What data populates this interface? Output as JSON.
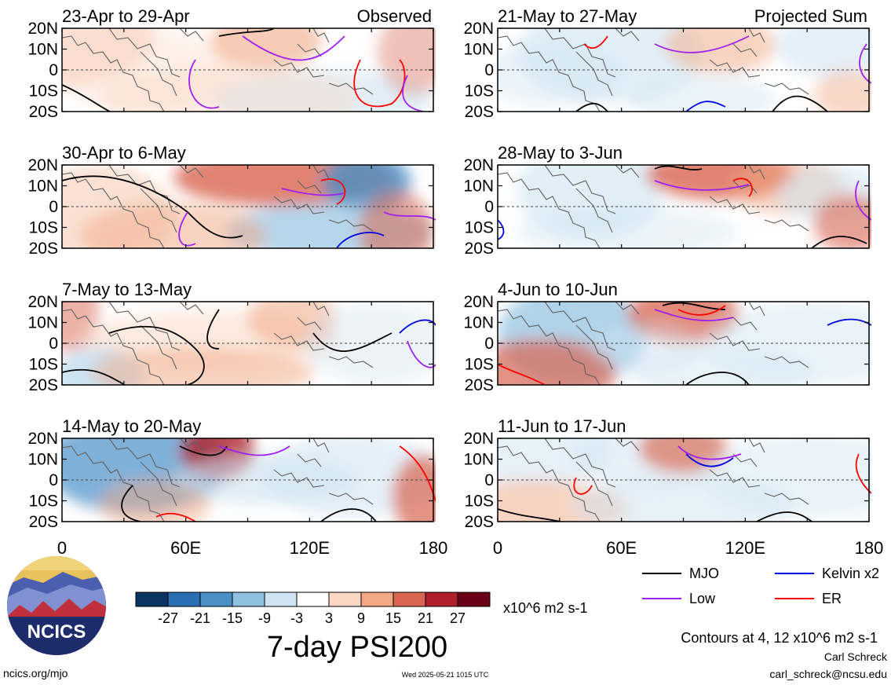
{
  "chart_data": {
    "type": "heatmap",
    "title": "7-day PSI200",
    "units": "x10^6 m2 s-1",
    "columns": [
      {
        "label": "Observed",
        "panels": [
          {
            "label": "23-Apr to 29-Apr"
          },
          {
            "label": "30-Apr to 6-May"
          },
          {
            "label": "7-May to 13-May"
          },
          {
            "label": "14-May to 20-May"
          }
        ]
      },
      {
        "label": "Projected Sum",
        "panels": [
          {
            "label": "21-May to 27-May"
          },
          {
            "label": "28-May to 3-Jun"
          },
          {
            "label": "4-Jun to 10-Jun"
          },
          {
            "label": "11-Jun to 17-Jun"
          }
        ]
      }
    ],
    "y_ticks": [
      "20N",
      "10N",
      "0",
      "10S",
      "20S"
    ],
    "x_ticks": [
      "0",
      "60E",
      "120E",
      "180"
    ],
    "xlim": [
      0,
      180
    ],
    "ylim": [
      -20,
      20
    ],
    "colorbar": {
      "tick_labels": [
        "-27",
        "-21",
        "-15",
        "-9",
        "-3",
        "3",
        "9",
        "15",
        "21",
        "27"
      ],
      "colors": [
        "#0a3560",
        "#2a6fb3",
        "#4a90c7",
        "#8fc0e0",
        "#cfe4f2",
        "#ffffff",
        "#fbd8c4",
        "#f2a884",
        "#d9644f",
        "#b0202c",
        "#6b0019"
      ]
    },
    "legend": [
      {
        "name": "MJO",
        "color": "#000000"
      },
      {
        "name": "Kelvin x2",
        "color": "#0000e0"
      },
      {
        "name": "Low",
        "color": "#a020f0"
      },
      {
        "name": "ER",
        "color": "#ff0000"
      }
    ],
    "contour_note": "Contours at 4, 12 x10^6 m2 s-1"
  },
  "footer": {
    "logo_text": "NCICS",
    "url": "ncics.org/mjo",
    "timestamp": "Wed 2025-05-21 1015 UTC",
    "author": "Carl Schreck",
    "email": "carl_schreck@ncsu.edu"
  }
}
